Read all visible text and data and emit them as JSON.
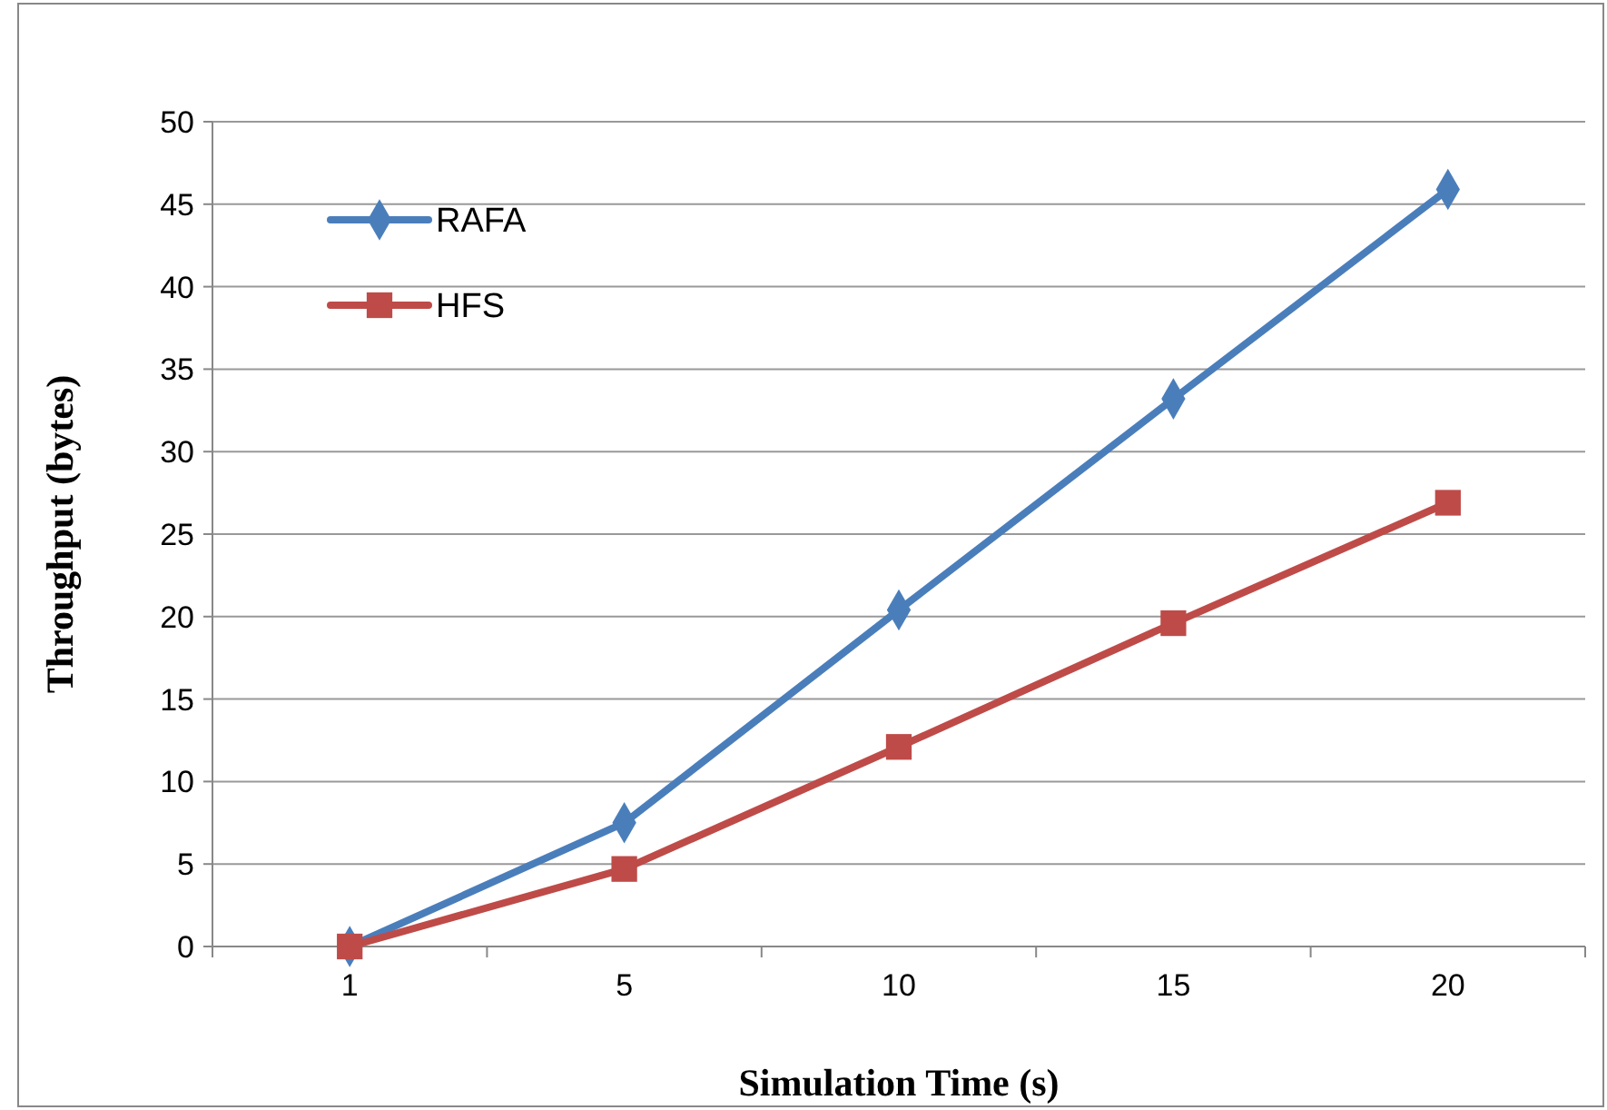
{
  "chart_data": {
    "type": "line",
    "xlabel": "Simulation Time (s)",
    "ylabel": "Throughput (bytes)",
    "categories": [
      "1",
      "5",
      "10",
      "15",
      "20"
    ],
    "series": [
      {
        "name": "RAFA",
        "color": "#4a7ebb",
        "marker": "diamond",
        "values": [
          0,
          7.5,
          20.4,
          33.2,
          45.9
        ]
      },
      {
        "name": "HFS",
        "color": "#be4b48",
        "marker": "square",
        "values": [
          0,
          4.7,
          12.1,
          19.6,
          26.9
        ]
      }
    ],
    "ylim": [
      0,
      50
    ],
    "yticks": [
      0,
      5,
      10,
      15,
      20,
      25,
      30,
      35,
      40,
      45,
      50
    ],
    "grid": "y",
    "legend": "top left",
    "line_style": "solid"
  }
}
